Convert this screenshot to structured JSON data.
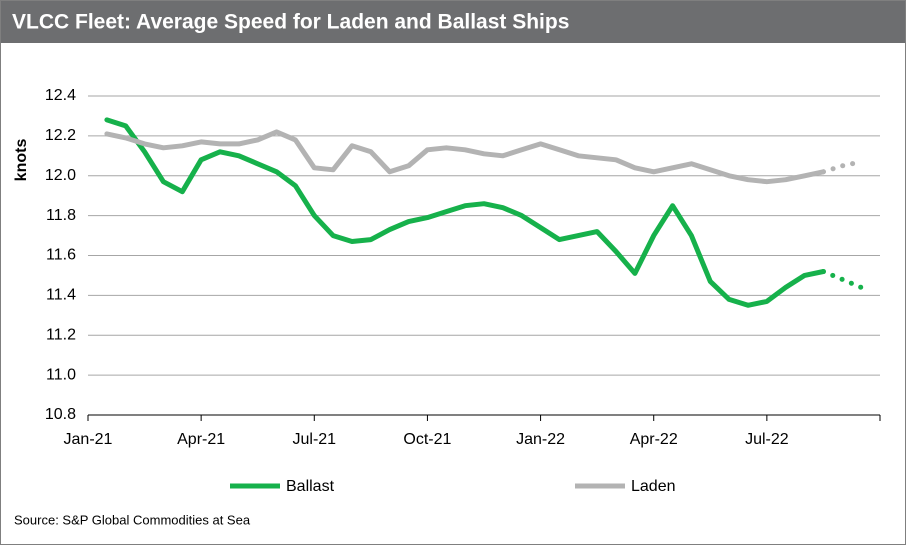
{
  "chart_data": {
    "type": "line",
    "title": "VLCC Fleet: Average Speed for Laden and Ballast Ships",
    "y_label": "knots",
    "source": "Source: S&P Global Commodities at Sea",
    "categories": [
      "Jan-21",
      null,
      null,
      null,
      null,
      null,
      "Apr-21",
      null,
      null,
      null,
      null,
      null,
      "Jul-21",
      null,
      null,
      null,
      null,
      null,
      "Oct-21",
      null,
      null,
      null,
      null,
      null,
      "Jan-22",
      null,
      null,
      null,
      null,
      null,
      "Apr-22",
      null,
      null,
      null,
      null,
      null,
      "Jul-22",
      null,
      null,
      null,
      null,
      null
    ],
    "series": [
      {
        "name": "Ballast",
        "color": "#16b14b",
        "dotted_from": 39,
        "values": [
          null,
          12.28,
          12.25,
          12.12,
          11.97,
          11.92,
          12.08,
          12.12,
          12.1,
          12.06,
          12.02,
          11.95,
          11.8,
          11.7,
          11.67,
          11.68,
          11.73,
          11.77,
          11.79,
          11.82,
          11.85,
          11.86,
          11.84,
          11.8,
          11.74,
          11.68,
          11.7,
          11.72,
          11.62,
          11.51,
          11.7,
          11.85,
          11.7,
          11.47,
          11.38,
          11.35,
          11.37,
          11.44,
          11.5,
          11.52,
          11.48,
          11.44
        ]
      },
      {
        "name": "Laden",
        "color": "#b3b3b3",
        "dotted_from": 39,
        "values": [
          null,
          12.21,
          12.19,
          12.16,
          12.14,
          12.15,
          12.17,
          12.16,
          12.16,
          12.18,
          12.22,
          12.18,
          12.04,
          12.03,
          12.15,
          12.12,
          12.02,
          12.05,
          12.13,
          12.14,
          12.13,
          12.11,
          12.1,
          12.13,
          12.16,
          12.13,
          12.1,
          12.09,
          12.08,
          12.04,
          12.02,
          12.04,
          12.06,
          12.03,
          12.0,
          11.98,
          11.97,
          11.98,
          12.0,
          12.02,
          12.05,
          12.07
        ]
      }
    ],
    "ylim": [
      10.8,
      12.4
    ],
    "yticks": [
      10.8,
      {
        "value": 11,
        "label": "11.0"
      },
      11.2,
      11.4,
      11.6,
      11.8,
      {
        "value": 12,
        "label": "12.0"
      },
      12.2,
      12.4
    ],
    "grid": true
  }
}
